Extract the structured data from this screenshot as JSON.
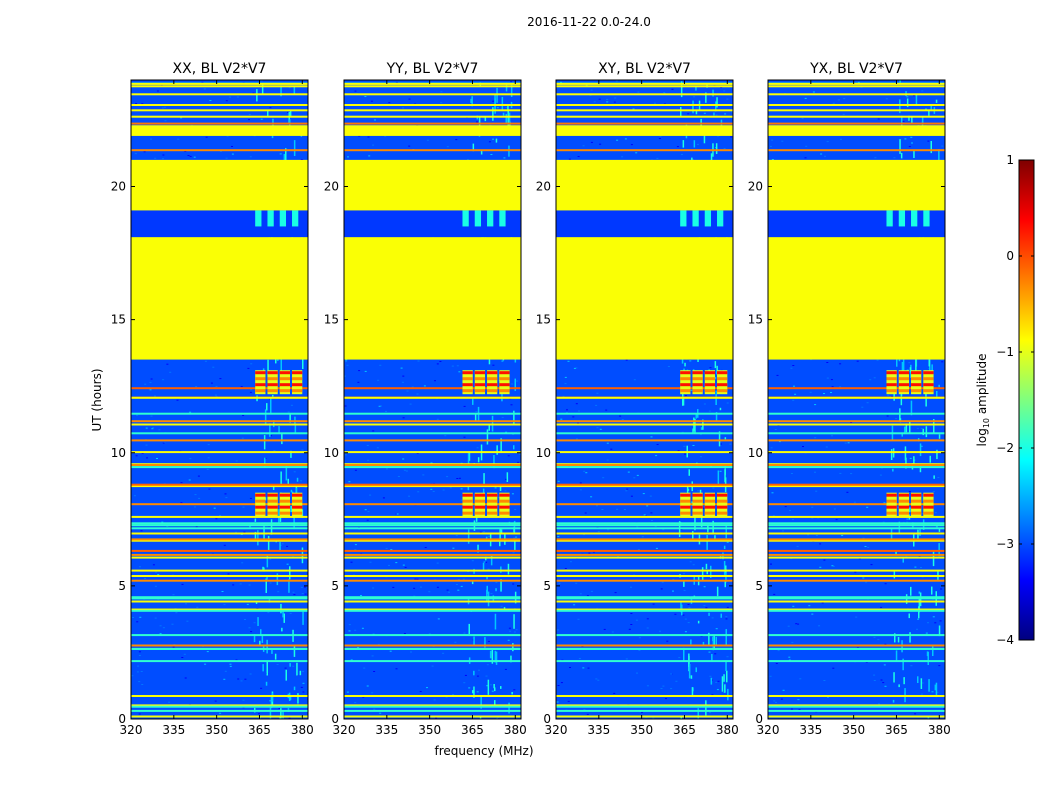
{
  "chart_data": {
    "type": "heatmap",
    "suptitle": "2016-11-22 0.0-24.0",
    "xlabel": "frequency (MHz)",
    "ylabel": "UT (hours)",
    "xlim": [
      320,
      382
    ],
    "ylim": [
      0,
      24
    ],
    "xticks": [
      "320",
      "335",
      "350",
      "365",
      "380"
    ],
    "yticks": [
      "0",
      "5",
      "10",
      "15",
      "20"
    ],
    "panels": [
      {
        "title": "XX, BL V2*V7",
        "burst_start_mhz": 363.5
      },
      {
        "title": "YY, BL V2*V7",
        "burst_start_mhz": 361.5
      },
      {
        "title": "XY, BL V2*V7",
        "burst_start_mhz": 363.5
      },
      {
        "title": "YX, BL V2*V7",
        "burst_start_mhz": 361.5
      }
    ],
    "colorbar": {
      "label_prefix": "log",
      "label_sub": "10",
      "label_suffix": " amplitude",
      "range": [
        -4,
        1
      ],
      "ticks": [
        "1",
        "0",
        "−1",
        "−2",
        "−3",
        "−4"
      ],
      "colors": [
        "#00007f",
        "#0000ff",
        "#007fff",
        "#00ffff",
        "#7fff7f",
        "#ffff00",
        "#ff7f00",
        "#ff0000",
        "#7f0000"
      ]
    },
    "data_summary": {
      "flagged_level_log10": -0.9,
      "background_level_log10": -3.0,
      "flagged_ut_ranges": [
        [
          13.5,
          18.1
        ],
        [
          19.1,
          21.0
        ],
        [
          21.9,
          22.3
        ]
      ],
      "rfi_bursts_ut": [
        [
          7.6,
          8.5
        ],
        [
          12.2,
          13.1
        ]
      ],
      "rfi_band_mhz": [
        363,
        380
      ]
    }
  }
}
